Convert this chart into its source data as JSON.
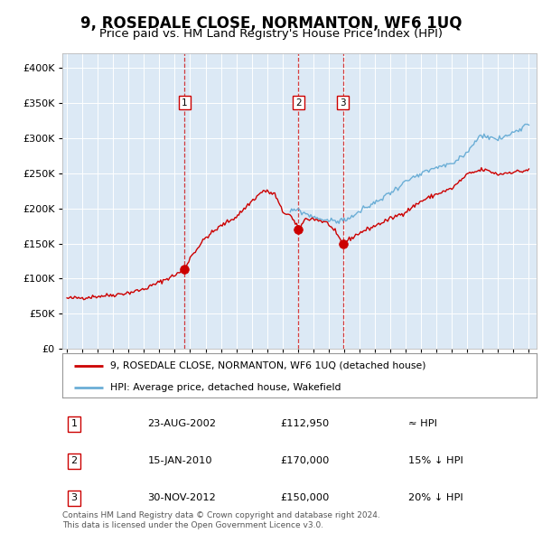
{
  "title": "9, ROSEDALE CLOSE, NORMANTON, WF6 1UQ",
  "subtitle": "Price paid vs. HM Land Registry's House Price Index (HPI)",
  "legend_line1": "9, ROSEDALE CLOSE, NORMANTON, WF6 1UQ (detached house)",
  "legend_line2": "HPI: Average price, detached house, Wakefield",
  "transactions": [
    {
      "num": 1,
      "date_year": 2002.64,
      "price": 112950,
      "label": "23-AUG-2002",
      "price_str": "£112,950",
      "vs_hpi": "≈ HPI"
    },
    {
      "num": 2,
      "date_year": 2010.04,
      "price": 170000,
      "label": "15-JAN-2010",
      "price_str": "£170,000",
      "vs_hpi": "15% ↓ HPI"
    },
    {
      "num": 3,
      "date_year": 2012.92,
      "price": 150000,
      "label": "30-NOV-2012",
      "price_str": "£150,000",
      "vs_hpi": "20% ↓ HPI"
    }
  ],
  "hpi_color": "#6baed6",
  "price_color": "#cc0000",
  "bg_color": "#dce9f5",
  "grid_color": "white",
  "ylim": [
    0,
    420000
  ],
  "yticks": [
    0,
    50000,
    100000,
    150000,
    200000,
    250000,
    300000,
    350000,
    400000
  ],
  "xlim_min": 1994.7,
  "xlim_max": 2025.5,
  "footer": "Contains HM Land Registry data © Crown copyright and database right 2024.\nThis data is licensed under the Open Government Licence v3.0.",
  "red_anchors_x": [
    1995.0,
    1996.0,
    1997.0,
    1998.0,
    1999.0,
    2000.0,
    2001.0,
    2002.0,
    2002.64,
    2003.0,
    2004.0,
    2005.0,
    2006.0,
    2007.0,
    2007.75,
    2008.5,
    2009.0,
    2009.5,
    2010.04,
    2010.5,
    2011.0,
    2011.5,
    2012.0,
    2012.92,
    2013.5,
    2014.0,
    2015.0,
    2016.0,
    2017.0,
    2018.0,
    2019.0,
    2020.0,
    2021.0,
    2022.0,
    2022.5,
    2023.0,
    2023.5,
    2024.0,
    2024.5,
    2025.0
  ],
  "red_anchors_y": [
    72000,
    73000,
    75000,
    77000,
    80000,
    85000,
    95000,
    105000,
    112950,
    130000,
    158000,
    175000,
    188000,
    210000,
    225000,
    220000,
    195000,
    190000,
    170000,
    185000,
    185000,
    182000,
    178000,
    150000,
    158000,
    165000,
    175000,
    185000,
    195000,
    210000,
    220000,
    228000,
    248000,
    255000,
    252000,
    248000,
    250000,
    252000,
    252000,
    255000
  ],
  "blue_anchors_x": [
    2009.5,
    2010.0,
    2010.5,
    2011.0,
    2011.5,
    2012.0,
    2012.5,
    2013.0,
    2013.5,
    2014.0,
    2015.0,
    2016.0,
    2017.0,
    2018.0,
    2019.0,
    2020.0,
    2021.0,
    2021.5,
    2022.0,
    2022.5,
    2023.0,
    2023.5,
    2024.0,
    2024.5,
    2025.0
  ],
  "blue_anchors_y": [
    195000,
    198000,
    192000,
    188000,
    185000,
    182000,
    182000,
    183000,
    188000,
    195000,
    208000,
    222000,
    238000,
    248000,
    258000,
    262000,
    280000,
    295000,
    305000,
    300000,
    298000,
    302000,
    308000,
    315000,
    320000
  ]
}
